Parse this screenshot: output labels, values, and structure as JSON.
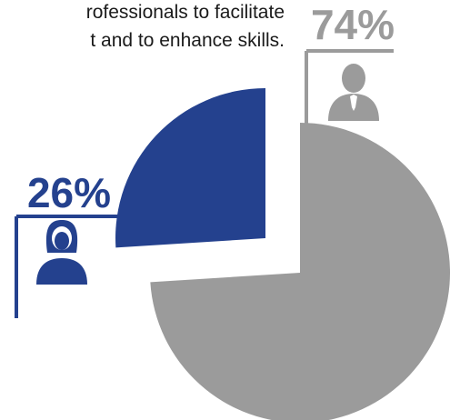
{
  "caption": {
    "lines": [
      "rofessionals to facilitate",
      "t and to enhance skills."
    ]
  },
  "chart_data": {
    "type": "pie",
    "categories": [
      "male",
      "female"
    ],
    "values": [
      74,
      26
    ],
    "labels": [
      "74%",
      "26%"
    ],
    "colors": [
      "#9b9b9b",
      "#24418e"
    ],
    "icons": [
      "man-icon",
      "woman-icon"
    ],
    "exploded": true
  }
}
